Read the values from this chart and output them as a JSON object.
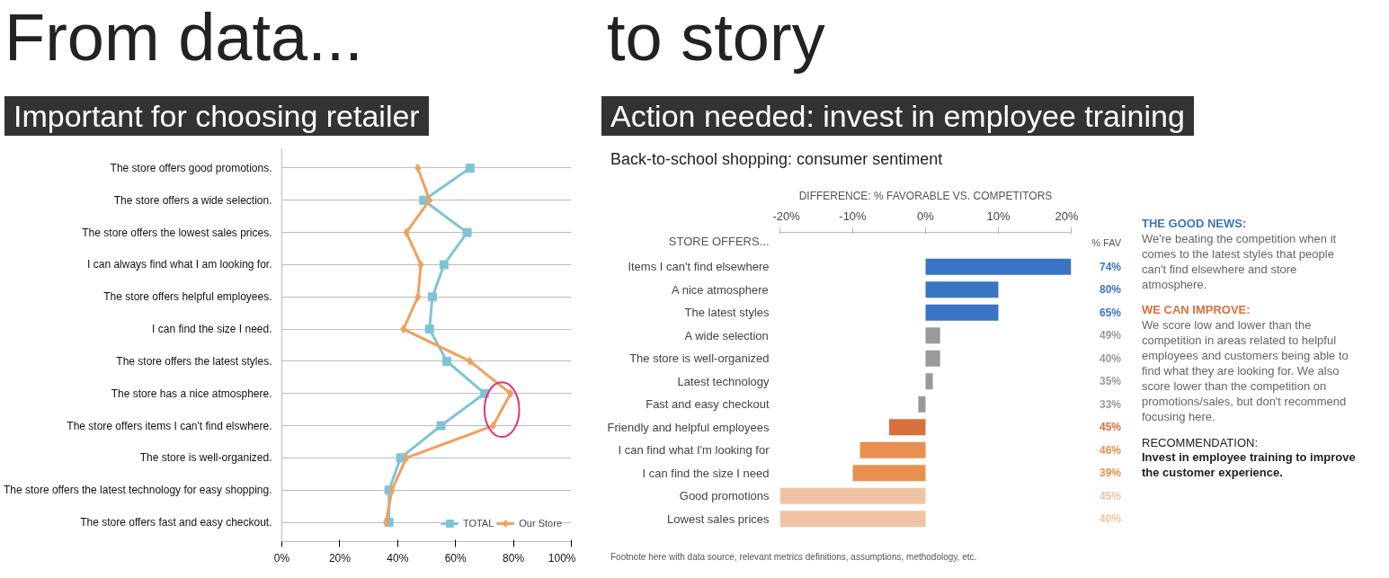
{
  "chart_data": [
    {
      "type": "line",
      "orientation": "horizontal",
      "title": "Important for choosing retailer",
      "annotations": [
        "From data..."
      ],
      "categories": [
        "The store offers good promotions.",
        "The store offers a wide selection.",
        "The store offers the lowest sales prices.",
        "I can always find what I am looking for.",
        "The store offers helpful employees.",
        "I can find the size I need.",
        "The store offers the latest styles.",
        "The store has a nice atmosphere.",
        "The store offers items I can't find elswhere.",
        "The store is well-organized.",
        "The store offers the latest technology for easy shopping.",
        "The store offers fast and easy checkout."
      ],
      "xlim": [
        0,
        100
      ],
      "xticks": [
        {
          "value": 0,
          "label": "0%"
        },
        {
          "value": 20,
          "label": "20%"
        },
        {
          "value": 40,
          "label": "40%"
        },
        {
          "value": 60,
          "label": "60%"
        },
        {
          "value": 80,
          "label": "80%"
        },
        {
          "value": 100,
          "label": "100%"
        }
      ],
      "grid": "y",
      "legend": "bottom right",
      "series": [
        {
          "name": "TOTAL",
          "color": "#7fc4d6",
          "marker": "square",
          "values": [
            65,
            49,
            64,
            56,
            52,
            51,
            57,
            70,
            55,
            41,
            37,
            37
          ]
        },
        {
          "name": "Our Store",
          "color": "#eea15e",
          "marker": "diamond",
          "values": [
            47,
            51,
            43,
            48,
            47,
            42,
            65,
            79,
            73,
            43,
            38,
            36
          ]
        }
      ]
    },
    {
      "type": "bar",
      "orientation": "horizontal",
      "title": "Action needed: invest in employee training",
      "subtitle": "Back-to-school shopping: consumer sentiment",
      "xlabel": "DIFFERENCE: % FAVORABLE VS. COMPETITORS",
      "ylabel": "STORE OFFERS...",
      "annotations": [
        "to story",
        "% FAV",
        "Footnote here with data source, relevant metrics definitions, assumptions, methodology, etc.",
        "THE GOOD NEWS:",
        "We're beating the competition when it comes to the latest styles that people can't find elsewhere and store atmosphere.",
        "WE CAN IMPROVE:",
        "We score low and lower than the competition in areas related to helpful employees and customers being able to find what they are looking for. We also score lower than the competition on promotions/sales, but don't recommend focusing here.",
        "RECOMMENDATION:",
        "Invest in employee training to improve the customer experience.",
        "74%",
        "80%",
        "65%",
        "49%",
        "40%",
        "35%",
        "33%",
        "45%",
        "46%",
        "39%",
        "45%",
        "40%"
      ],
      "categories": [
        "Items I can't find elsewhere",
        "A nice atmosphere",
        "The latest styles",
        "A wide selection",
        "The store is well-organized",
        "Latest technology",
        "Fast and easy checkout",
        "Friendly and helpful employees",
        "I can find what I'm looking for",
        "I can find the size I need",
        "Good promotions",
        "Lowest sales prices"
      ],
      "values": [
        20,
        10,
        10,
        2,
        2,
        1,
        -1,
        -5,
        -9,
        -10,
        -20,
        -20
      ],
      "colors": [
        "#3a75c4",
        "#3a75c4",
        "#3a75c4",
        "#9a9a9a",
        "#9a9a9a",
        "#9a9a9a",
        "#9a9a9a",
        "#d9703c",
        "#e8904f",
        "#e8904f",
        "#f0c3a5",
        "#f0c3a5"
      ],
      "xlim": [
        -20,
        20
      ],
      "xticks": [
        {
          "value": -20,
          "label": "-20%"
        },
        {
          "value": -10,
          "label": "-10%"
        },
        {
          "value": 0,
          "label": "0%"
        },
        {
          "value": 10,
          "label": "10%"
        },
        {
          "value": 20,
          "label": "20%"
        }
      ]
    }
  ]
}
